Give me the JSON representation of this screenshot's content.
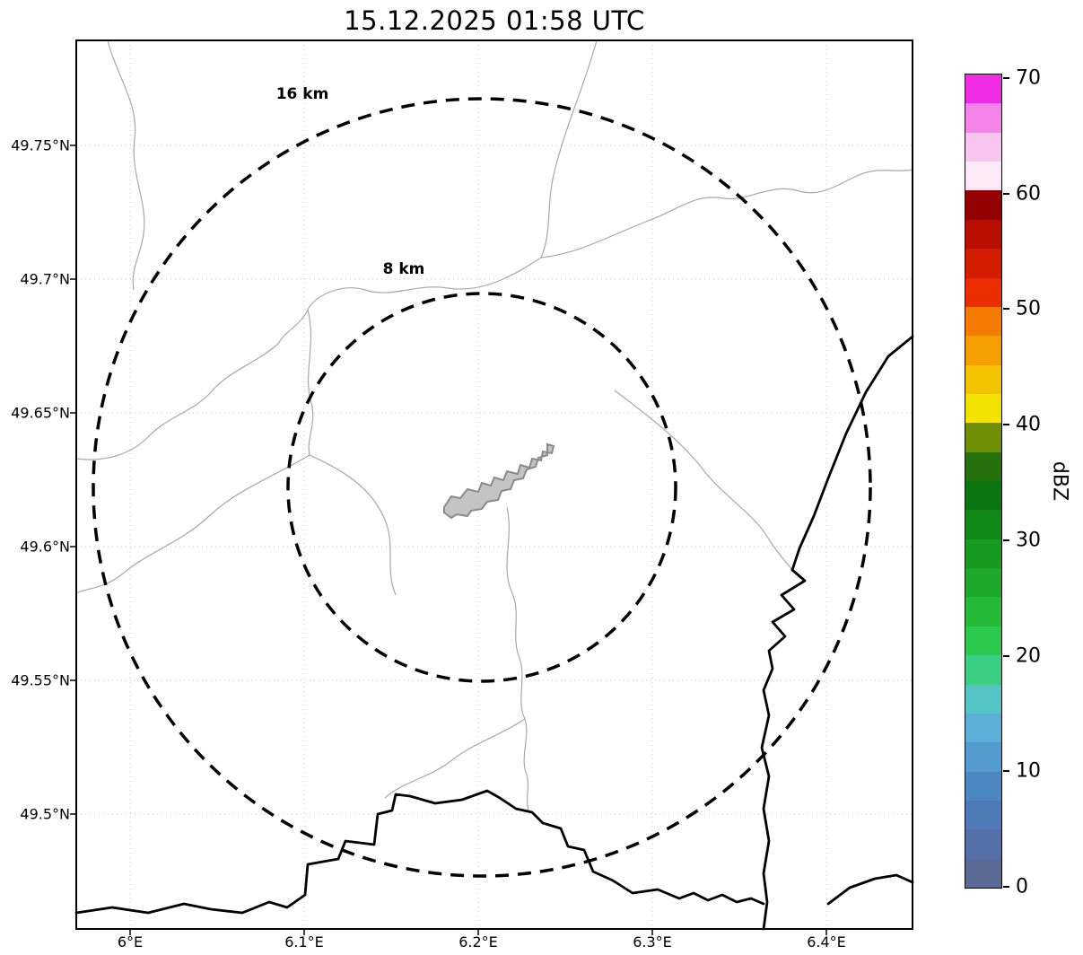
{
  "title": "15.12.2025 01:58 UTC",
  "axes": {
    "lat_ticks": [
      "49.75°N",
      "49.7°N",
      "49.65°N",
      "49.6°N",
      "49.55°N",
      "49.5°N"
    ],
    "lon_ticks": [
      "6°E",
      "6.1°E",
      "6.2°E",
      "6.3°E",
      "6.4°E"
    ]
  },
  "range_rings": [
    {
      "label": "16 km",
      "radius_km": 16
    },
    {
      "label": "8 km",
      "radius_km": 8
    }
  ],
  "map_colors": {
    "range_ring": "#000000",
    "grid": "#c8c8c8",
    "minor_boundary": "#a8a8a8",
    "major_boundary": "#000000",
    "landmark_fill": "#c4c4c4",
    "landmark_stroke": "#8a8a8a"
  },
  "colorbar": {
    "label": "dBZ",
    "min": 0,
    "max": 70,
    "tick_labels_top_to_bottom": [
      "70",
      "60",
      "50",
      "40",
      "30",
      "20",
      "10",
      "0"
    ],
    "colors_bottom_to_top": [
      "#5e6a96",
      "#5470a8",
      "#4f7ab8",
      "#4c87c4",
      "#539bce",
      "#5cb0d8",
      "#54c4c4",
      "#3ccf84",
      "#2bc94e",
      "#24ba38",
      "#1daa2a",
      "#169a20",
      "#108818",
      "#0b7512",
      "#27700c",
      "#6f8f06",
      "#f2e300",
      "#f4c400",
      "#f5a000",
      "#f57a00",
      "#ea2e00",
      "#d41d00",
      "#b80e00",
      "#940000",
      "#fbe9f8",
      "#f8c5f0",
      "#f484e8",
      "#ee2ce4"
    ]
  }
}
